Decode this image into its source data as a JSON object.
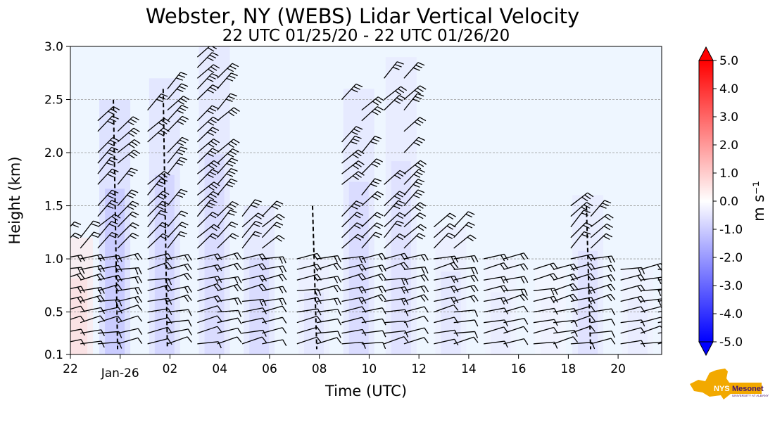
{
  "chart_data": {
    "type": "heatmap",
    "title": "Webster, NY (WEBS) Lidar Vertical Velocity",
    "subtitle": "22 UTC 01/25/20 - 22 UTC 01/26/20",
    "xlabel": "Time (UTC)",
    "ylabel": "Height (km)",
    "x_ticks": [
      "22",
      "Jan-26",
      "02",
      "04",
      "06",
      "08",
      "10",
      "12",
      "14",
      "16",
      "18",
      "20"
    ],
    "y_ticks": [
      "0.1",
      "0.5",
      "1.0",
      "1.5",
      "2.0",
      "2.5",
      "3.0"
    ],
    "ylim": [
      0.1,
      3.0
    ],
    "grid": "horizontal dashed",
    "colorbar": {
      "label": "m s⁻¹",
      "ticks": [
        "5.0",
        "4.0",
        "3.0",
        "2.0",
        "1.0",
        "0.0",
        "-1.0",
        "-2.0",
        "-3.0",
        "-4.0",
        "-5.0"
      ],
      "range": [
        -5.0,
        5.0
      ],
      "colors": [
        "#0000ff",
        "#ffffff",
        "#ff0000"
      ]
    },
    "background_color": "#eef6ff",
    "echo_columns": [
      {
        "t": 0.0,
        "top": 1.2,
        "w": 0.5
      },
      {
        "t": 1.5,
        "top": 2.5,
        "w": -0.9
      },
      {
        "t": 3.5,
        "top": 2.7,
        "w": -0.7
      },
      {
        "t": 5.5,
        "top": 3.0,
        "w": -0.6
      },
      {
        "t": 7.3,
        "top": 1.5,
        "w": -0.6
      },
      {
        "t": 9.5,
        "top": 1.0,
        "w": -0.4
      },
      {
        "t": 11.3,
        "top": 2.6,
        "w": -0.6
      },
      {
        "t": 13.0,
        "top": 2.9,
        "w": -0.5
      },
      {
        "t": 15.0,
        "top": 1.3,
        "w": -0.4
      },
      {
        "t": 17.0,
        "top": 1.0,
        "w": -0.3
      },
      {
        "t": 19.0,
        "top": 0.9,
        "w": -0.2
      },
      {
        "t": 20.5,
        "top": 1.6,
        "w": -0.5
      },
      {
        "t": 22.5,
        "top": 0.9,
        "w": -0.3
      },
      {
        "t": 24.0,
        "top": 0.9,
        "w": -0.3
      }
    ]
  },
  "logo": {
    "text": "NYS Mesonet",
    "subtext": "UNIVERSITY AT ALBANY",
    "colors": [
      "#f2a900",
      "#46166b"
    ]
  }
}
